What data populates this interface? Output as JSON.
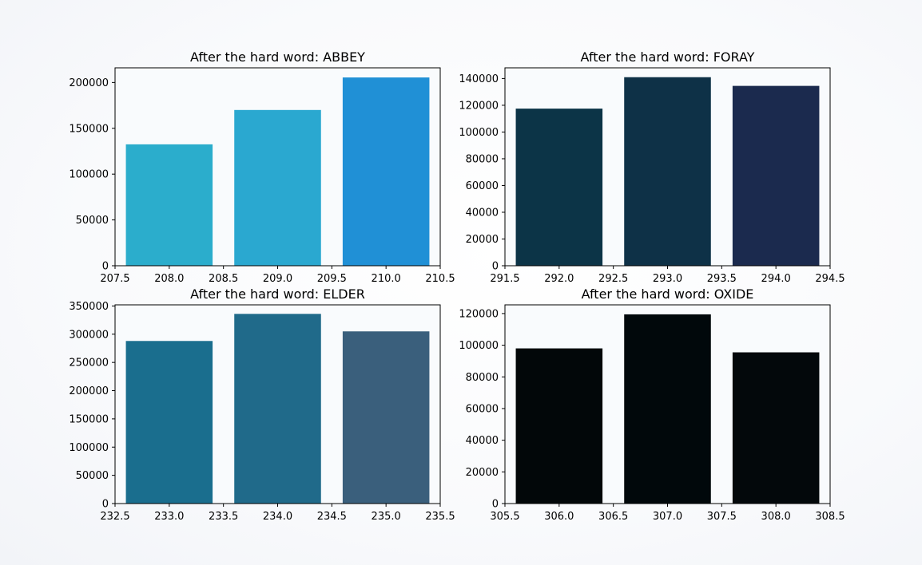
{
  "chart_data": [
    {
      "type": "bar",
      "title": "After the hard word: ABBEY",
      "x": [
        208,
        209,
        210
      ],
      "values": [
        132500,
        170000,
        205500
      ],
      "xlim": [
        207.5,
        210.5
      ],
      "ylim": [
        0,
        216000
      ],
      "xticks": [
        "207.5",
        "208.0",
        "208.5",
        "209.0",
        "209.5",
        "210.0",
        "210.5"
      ],
      "yticks": [
        "0",
        "50000",
        "100000",
        "150000",
        "200000"
      ],
      "colors": [
        "#2badcc",
        "#2aa8d0",
        "#2090d6"
      ]
    },
    {
      "type": "bar",
      "title": "After the hard word: FORAY",
      "x": [
        292,
        293,
        294
      ],
      "values": [
        117500,
        141000,
        134500
      ],
      "xlim": [
        291.5,
        294.5
      ],
      "ylim": [
        0,
        148000
      ],
      "xticks": [
        "291.5",
        "292.0",
        "292.5",
        "293.0",
        "293.5",
        "294.0",
        "294.5"
      ],
      "yticks": [
        "0",
        "20000",
        "40000",
        "60000",
        "80000",
        "100000",
        "120000",
        "140000"
      ],
      "colors": [
        "#0c3447",
        "#0e3147",
        "#1b2a4e"
      ]
    },
    {
      "type": "bar",
      "title": "After the hard word: ELDER",
      "x": [
        233,
        234,
        235
      ],
      "values": [
        288000,
        336000,
        305000
      ],
      "xlim": [
        232.5,
        235.5
      ],
      "ylim": [
        0,
        352000
      ],
      "xticks": [
        "232.5",
        "233.0",
        "233.5",
        "234.0",
        "234.5",
        "235.0",
        "235.5"
      ],
      "yticks": [
        "0",
        "50000",
        "100000",
        "150000",
        "200000",
        "250000",
        "300000",
        "350000"
      ],
      "colors": [
        "#1a6e8e",
        "#206a8a",
        "#3a5f7c"
      ]
    },
    {
      "type": "bar",
      "title": "After the hard word: OXIDE",
      "x": [
        306,
        307,
        308
      ],
      "values": [
        98000,
        119500,
        95500
      ],
      "xlim": [
        305.5,
        308.5
      ],
      "ylim": [
        0,
        125500
      ],
      "xticks": [
        "305.5",
        "306.0",
        "306.5",
        "307.0",
        "307.5",
        "308.0",
        "308.5"
      ],
      "yticks": [
        "0",
        "20000",
        "40000",
        "60000",
        "80000",
        "100000",
        "120000"
      ],
      "colors": [
        "#020709",
        "#01080b",
        "#03080b"
      ]
    }
  ]
}
